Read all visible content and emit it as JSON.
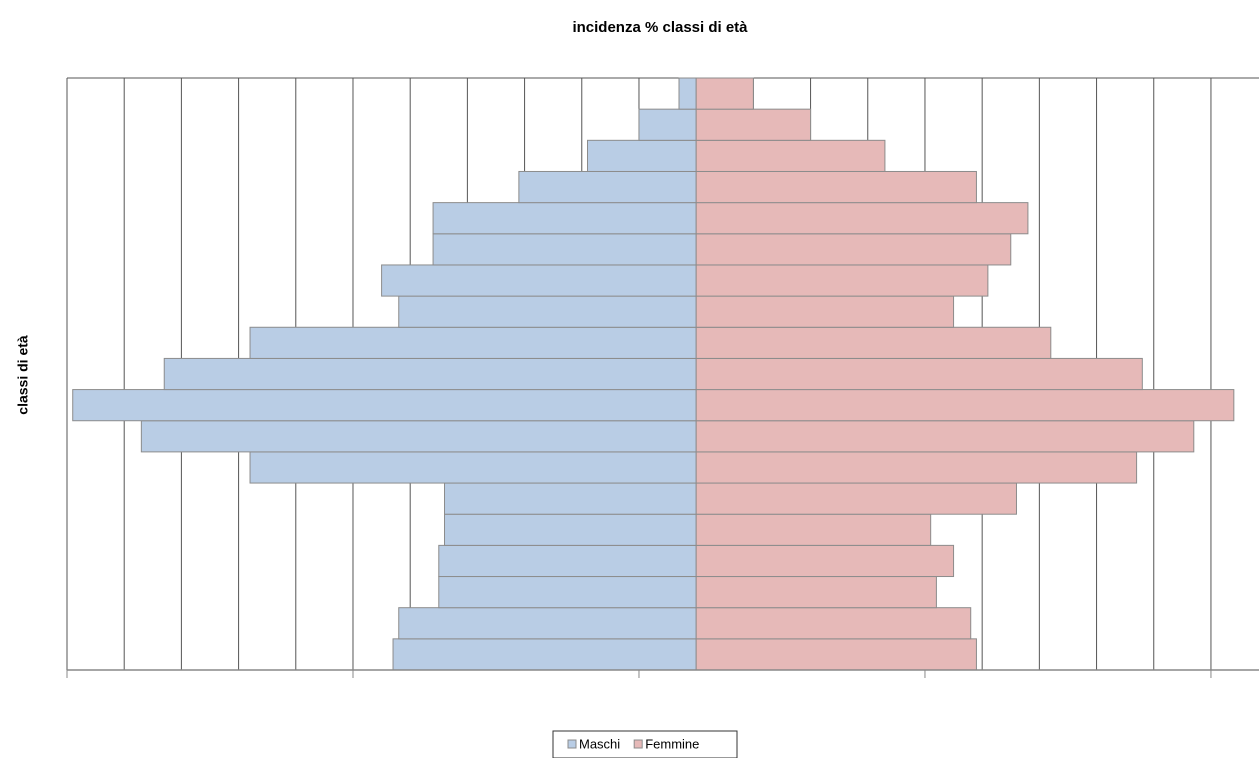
{
  "chart_data": {
    "type": "pyramid",
    "title": "incidenza %  classi di età",
    "y_label": "classi di età",
    "categories": [
      null,
      null,
      null,
      null,
      null,
      null,
      null,
      null,
      null,
      null,
      null,
      null,
      null,
      null,
      null,
      null,
      null,
      null,
      null
    ],
    "series": [
      {
        "name": "Maschi",
        "color": "#b9cde5",
        "values": [
          -5.3,
          -5.2,
          -4.5,
          -4.5,
          -4.4,
          -4.4,
          -7.8,
          -9.7,
          -10.9,
          -9.3,
          -7.8,
          -5.2,
          -5.5,
          -4.6,
          -4.6,
          -3.1,
          -1.9,
          -1.0,
          -0.3
        ]
      },
      {
        "name": "Femmine",
        "color": "#e6b9b8",
        "values": [
          4.9,
          4.8,
          4.2,
          4.5,
          4.1,
          5.6,
          7.7,
          8.7,
          9.4,
          7.8,
          6.2,
          4.5,
          5.1,
          5.5,
          5.8,
          4.9,
          3.3,
          2.0,
          1.0
        ]
      }
    ],
    "xlim": [
      -11,
      9.84
    ],
    "xticks": [
      -11,
      -6,
      -1,
      4,
      9
    ],
    "xgrid": [
      -11,
      -10,
      -9,
      -8,
      -7,
      -6,
      -5,
      -4,
      -3,
      -2,
      -1,
      0,
      1,
      2,
      3,
      4,
      5,
      6,
      7,
      8,
      9
    ],
    "grid": true
  }
}
